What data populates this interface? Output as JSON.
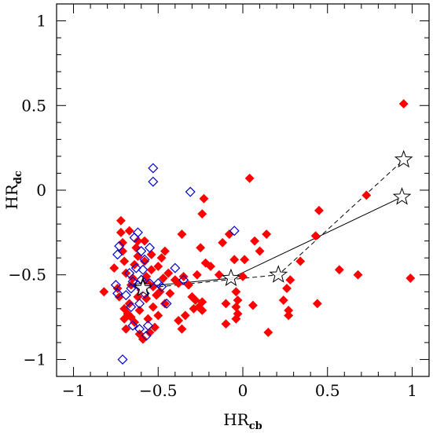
{
  "chart_data": {
    "type": "scatter",
    "xlim": [
      -1.1,
      1.1
    ],
    "ylim": [
      -1.1,
      1.1
    ],
    "xlabel": "HR",
    "xlabel_sub": "cb",
    "ylabel": "HR",
    "ylabel_sub": "dc",
    "x_ticks": [
      {
        "value": -1,
        "label": "−1"
      },
      {
        "value": -0.5,
        "label": "−0.5"
      },
      {
        "value": 0,
        "label": "0"
      },
      {
        "value": 0.5,
        "label": "0.5"
      },
      {
        "value": 1,
        "label": "1"
      }
    ],
    "y_ticks": [
      {
        "value": -1,
        "label": "−1"
      },
      {
        "value": -0.5,
        "label": "−0.5"
      },
      {
        "value": 0,
        "label": "0"
      },
      {
        "value": 0.5,
        "label": "0.5"
      },
      {
        "value": 1,
        "label": "1"
      }
    ],
    "grid": false,
    "colors": {
      "filled": "#ff0000",
      "open": "#0000cc",
      "star": "#000000"
    },
    "series": [
      {
        "marker": "filled-diamond",
        "points": [
          [
            -0.82,
            -0.6
          ],
          [
            -0.76,
            -0.46
          ],
          [
            -0.74,
            -0.58
          ],
          [
            -0.73,
            -0.63
          ],
          [
            -0.72,
            -0.18
          ],
          [
            -0.72,
            -0.25
          ],
          [
            -0.71,
            -0.31
          ],
          [
            -0.71,
            -0.36
          ],
          [
            -0.7,
            -0.42
          ],
          [
            -0.69,
            -0.49
          ],
          [
            -0.7,
            -0.7
          ],
          [
            -0.7,
            -0.76
          ],
          [
            -0.69,
            -0.82
          ],
          [
            -0.68,
            -0.73
          ],
          [
            -0.67,
            -0.24
          ],
          [
            -0.67,
            -0.67
          ],
          [
            -0.66,
            -0.75
          ],
          [
            -0.66,
            -0.56
          ],
          [
            -0.65,
            -0.52
          ],
          [
            -0.64,
            -0.44
          ],
          [
            -0.64,
            -0.78
          ],
          [
            -0.63,
            -0.34
          ],
          [
            -0.62,
            -0.3
          ],
          [
            -0.62,
            -0.39
          ],
          [
            -0.62,
            -0.63
          ],
          [
            -0.61,
            -0.85
          ],
          [
            -0.61,
            -0.71
          ],
          [
            -0.6,
            -0.59
          ],
          [
            -0.59,
            -0.88
          ],
          [
            -0.58,
            -0.3
          ],
          [
            -0.58,
            -0.42
          ],
          [
            -0.57,
            -0.51
          ],
          [
            -0.57,
            -0.64
          ],
          [
            -0.56,
            -0.55
          ],
          [
            -0.56,
            -0.76
          ],
          [
            -0.55,
            -0.84
          ],
          [
            -0.54,
            -0.38
          ],
          [
            -0.54,
            -0.47
          ],
          [
            -0.53,
            -0.57
          ],
          [
            -0.53,
            -0.69
          ],
          [
            -0.52,
            -0.81
          ],
          [
            -0.51,
            -0.62
          ],
          [
            -0.5,
            -0.45
          ],
          [
            -0.5,
            -0.74
          ],
          [
            -0.49,
            -0.6
          ],
          [
            -0.48,
            -0.4
          ],
          [
            -0.47,
            -0.52
          ],
          [
            -0.46,
            -0.36
          ],
          [
            -0.46,
            -0.67
          ],
          [
            -0.44,
            -0.49
          ],
          [
            -0.43,
            -0.61
          ],
          [
            -0.4,
            -0.53
          ],
          [
            -0.38,
            -0.55
          ],
          [
            -0.38,
            -0.77
          ],
          [
            -0.36,
            -0.82
          ],
          [
            -0.36,
            -0.26
          ],
          [
            -0.35,
            -0.51
          ],
          [
            -0.34,
            -0.74
          ],
          [
            -0.32,
            -0.56
          ],
          [
            -0.3,
            -0.63
          ],
          [
            -0.29,
            -0.7
          ],
          [
            -0.28,
            -0.65
          ],
          [
            -0.27,
            -0.5
          ],
          [
            -0.26,
            -0.69
          ],
          [
            -0.25,
            -0.34
          ],
          [
            -0.24,
            -0.66
          ],
          [
            -0.24,
            -0.71
          ],
          [
            -0.24,
            -0.14
          ],
          [
            -0.23,
            -0.05
          ],
          [
            -0.22,
            -0.43
          ],
          [
            -0.19,
            -0.45
          ],
          [
            -0.14,
            -0.5
          ],
          [
            -0.12,
            -0.31
          ],
          [
            -0.1,
            -0.67
          ],
          [
            -0.1,
            -0.79
          ],
          [
            -0.08,
            -0.26
          ],
          [
            -0.05,
            -0.41
          ],
          [
            -0.04,
            -0.6
          ],
          [
            -0.04,
            -0.69
          ],
          [
            -0.04,
            -0.76
          ],
          [
            -0.03,
            -0.73
          ],
          [
            -0.03,
            -0.65
          ],
          [
            0.0,
            -0.51
          ],
          [
            0.01,
            -0.41
          ],
          [
            0.04,
            0.07
          ],
          [
            0.06,
            -0.68
          ],
          [
            0.07,
            -0.3
          ],
          [
            0.1,
            -0.36
          ],
          [
            0.14,
            -0.26
          ],
          [
            0.15,
            -0.84
          ],
          [
            0.24,
            -0.65
          ],
          [
            0.26,
            -0.58
          ],
          [
            0.27,
            -0.74
          ],
          [
            0.27,
            -0.71
          ],
          [
            0.28,
            -0.53
          ],
          [
            0.34,
            -0.42
          ],
          [
            0.43,
            -0.27
          ],
          [
            0.44,
            -0.67
          ],
          [
            0.45,
            -0.12
          ],
          [
            0.57,
            -0.47
          ],
          [
            0.68,
            -0.5
          ],
          [
            0.73,
            -0.03
          ],
          [
            0.95,
            0.51
          ],
          [
            0.99,
            -0.52
          ]
        ]
      },
      {
        "marker": "open-diamond",
        "points": [
          [
            -0.71,
            -1.0
          ],
          [
            -0.75,
            -0.56
          ],
          [
            -0.74,
            -0.61
          ],
          [
            -0.74,
            -0.38
          ],
          [
            -0.73,
            -0.33
          ],
          [
            -0.69,
            -0.62
          ],
          [
            -0.67,
            -0.49
          ],
          [
            -0.66,
            -0.69
          ],
          [
            -0.66,
            -0.58
          ],
          [
            -0.65,
            -0.54
          ],
          [
            -0.65,
            -0.8
          ],
          [
            -0.64,
            -0.28
          ],
          [
            -0.63,
            -0.46
          ],
          [
            -0.62,
            -0.25
          ],
          [
            -0.62,
            -0.56
          ],
          [
            -0.61,
            -0.67
          ],
          [
            -0.61,
            -0.82
          ],
          [
            -0.6,
            -0.36
          ],
          [
            -0.6,
            -0.53
          ],
          [
            -0.59,
            -0.47
          ],
          [
            -0.58,
            -0.61
          ],
          [
            -0.58,
            -0.41
          ],
          [
            -0.57,
            -0.86
          ],
          [
            -0.56,
            -0.8
          ],
          [
            -0.55,
            -0.34
          ],
          [
            -0.55,
            -0.55
          ],
          [
            -0.53,
            0.13
          ],
          [
            -0.53,
            0.05
          ],
          [
            -0.5,
            -0.55
          ],
          [
            -0.48,
            -0.57
          ],
          [
            -0.45,
            -0.67
          ],
          [
            -0.4,
            -0.46
          ],
          [
            -0.35,
            -0.53
          ],
          [
            -0.31,
            -0.01
          ],
          [
            -0.05,
            -0.24
          ]
        ]
      },
      {
        "marker": "open-star",
        "line": "solid",
        "points": [
          [
            -0.59,
            -0.57
          ],
          [
            -0.07,
            -0.52
          ],
          [
            0.94,
            -0.04
          ]
        ]
      },
      {
        "marker": "open-star",
        "line": "dashed",
        "points": [
          [
            -0.59,
            -0.58
          ],
          [
            0.21,
            -0.5
          ],
          [
            0.95,
            0.18
          ]
        ]
      }
    ]
  }
}
